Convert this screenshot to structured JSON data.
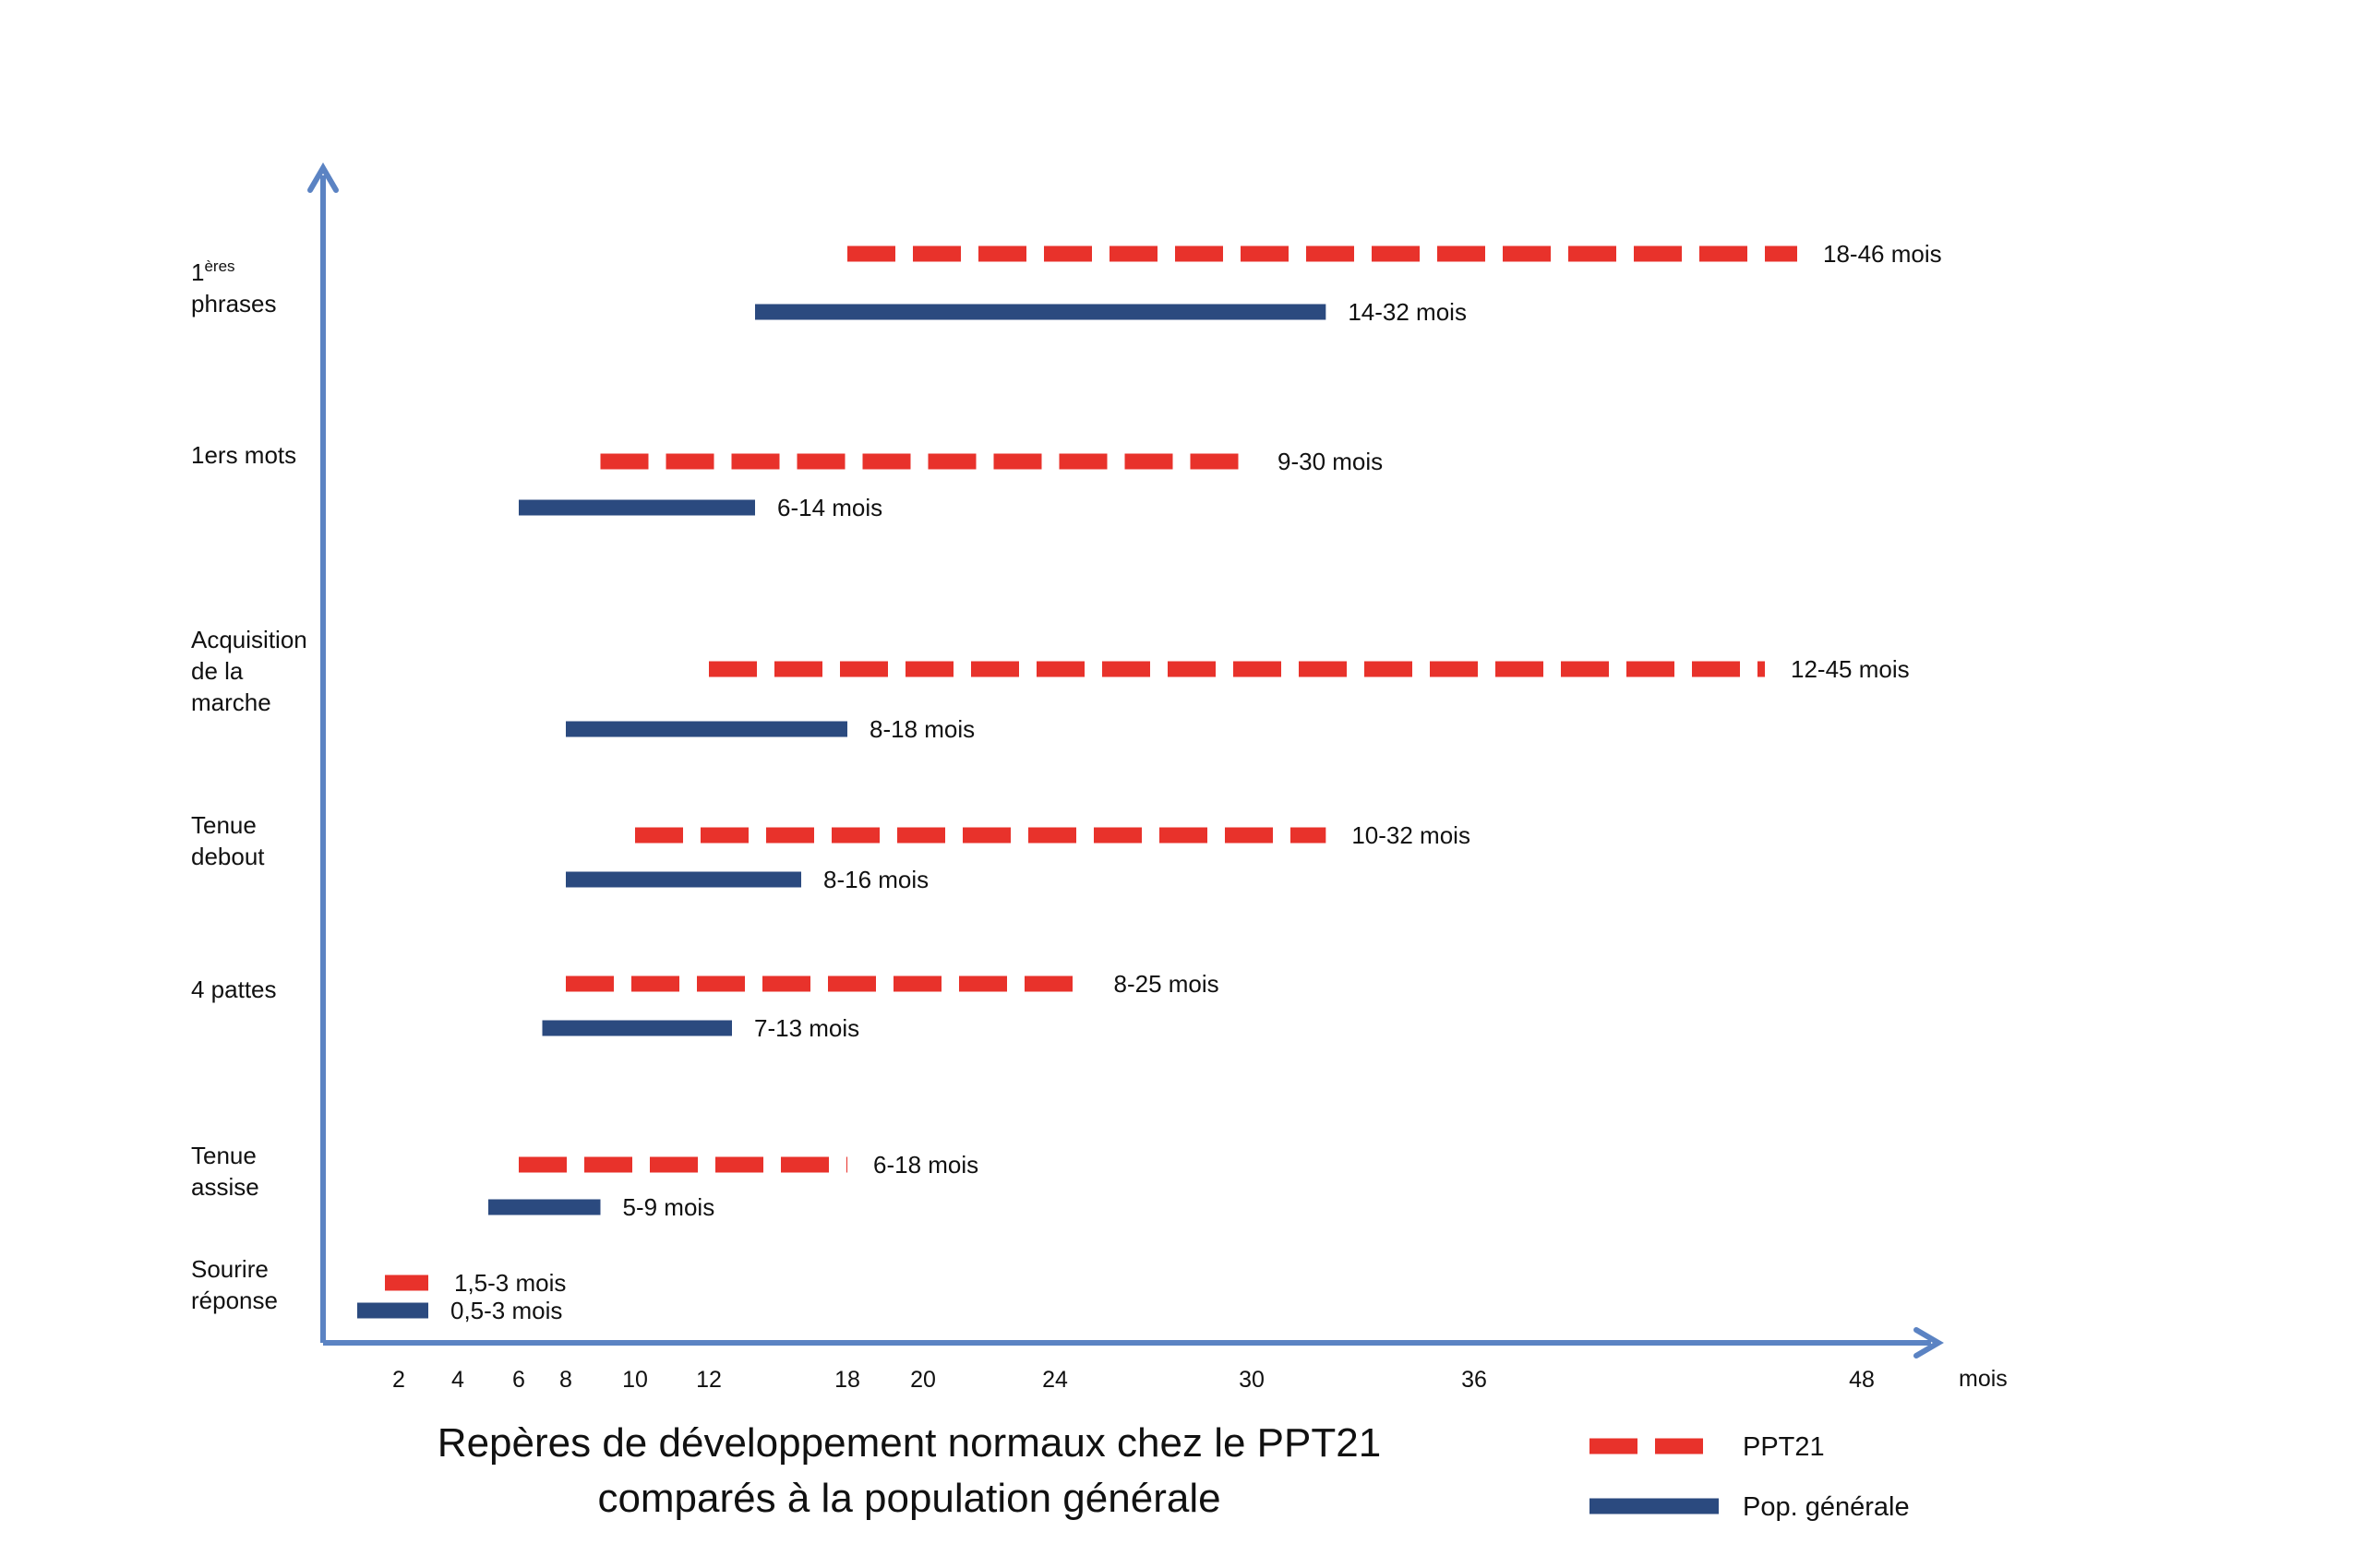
{
  "chart_data": {
    "type": "range-bar",
    "title_lines": [
      "Repères de développement normaux chez le PPT21",
      "comparés à la population générale"
    ],
    "xlabel": "mois",
    "ylabel": "",
    "xlim": [
      0,
      52
    ],
    "x_ticks": [
      2,
      4,
      6,
      8,
      10,
      12,
      18,
      20,
      24,
      30,
      36,
      48
    ],
    "grid": false,
    "legend_position": "bottom-right",
    "colors": {
      "ppt21": "#e8322b",
      "general": "#2b4a7f",
      "axis": "#5b83c3"
    },
    "series": [
      {
        "name": "PPT21",
        "key": "ppt21",
        "style": "dashed"
      },
      {
        "name": "Pop. générale",
        "key": "general",
        "style": "solid"
      }
    ],
    "milestones": [
      {
        "lines": [
          "Sourire",
          "réponse"
        ],
        "ppt21": {
          "range": [
            1.5,
            3
          ],
          "label": "1,5-3 mois"
        },
        "general": {
          "range": [
            0.5,
            3
          ],
          "label": "0,5-3 mois"
        }
      },
      {
        "lines": [
          "Tenue",
          "assise"
        ],
        "ppt21": {
          "range": [
            6,
            18
          ],
          "label": "6-18 mois"
        },
        "general": {
          "range": [
            5,
            9
          ],
          "label": "5-9 mois"
        }
      },
      {
        "lines": [
          "4 pattes"
        ],
        "ppt21": {
          "range": [
            8,
            25
          ],
          "label": "8-25 mois"
        },
        "general": {
          "range": [
            7,
            13
          ],
          "label": "7-13 mois"
        }
      },
      {
        "lines": [
          "Tenue",
          "debout"
        ],
        "ppt21": {
          "range": [
            10,
            32
          ],
          "label": "10-32 mois"
        },
        "general": {
          "range": [
            8,
            16
          ],
          "label": "8-16 mois"
        }
      },
      {
        "lines": [
          "Acquisition",
          "de la",
          "marche"
        ],
        "ppt21": {
          "range": [
            12,
            45
          ],
          "label": "12-45 mois"
        },
        "general": {
          "range": [
            8,
            18
          ],
          "label": "8-18 mois"
        }
      },
      {
        "lines": [
          "1ers mots"
        ],
        "ppt21": {
          "range": [
            9,
            30
          ],
          "label": "9-30 mois"
        },
        "general": {
          "range": [
            6,
            14
          ],
          "label": "6-14 mois"
        }
      },
      {
        "lines": [
          "1",
          "phrases"
        ],
        "superscript": "ères",
        "ppt21": {
          "range": [
            18,
            46
          ],
          "label": "18-46 mois"
        },
        "general": {
          "range": [
            14,
            32
          ],
          "label": "14-32 mois"
        }
      }
    ]
  }
}
